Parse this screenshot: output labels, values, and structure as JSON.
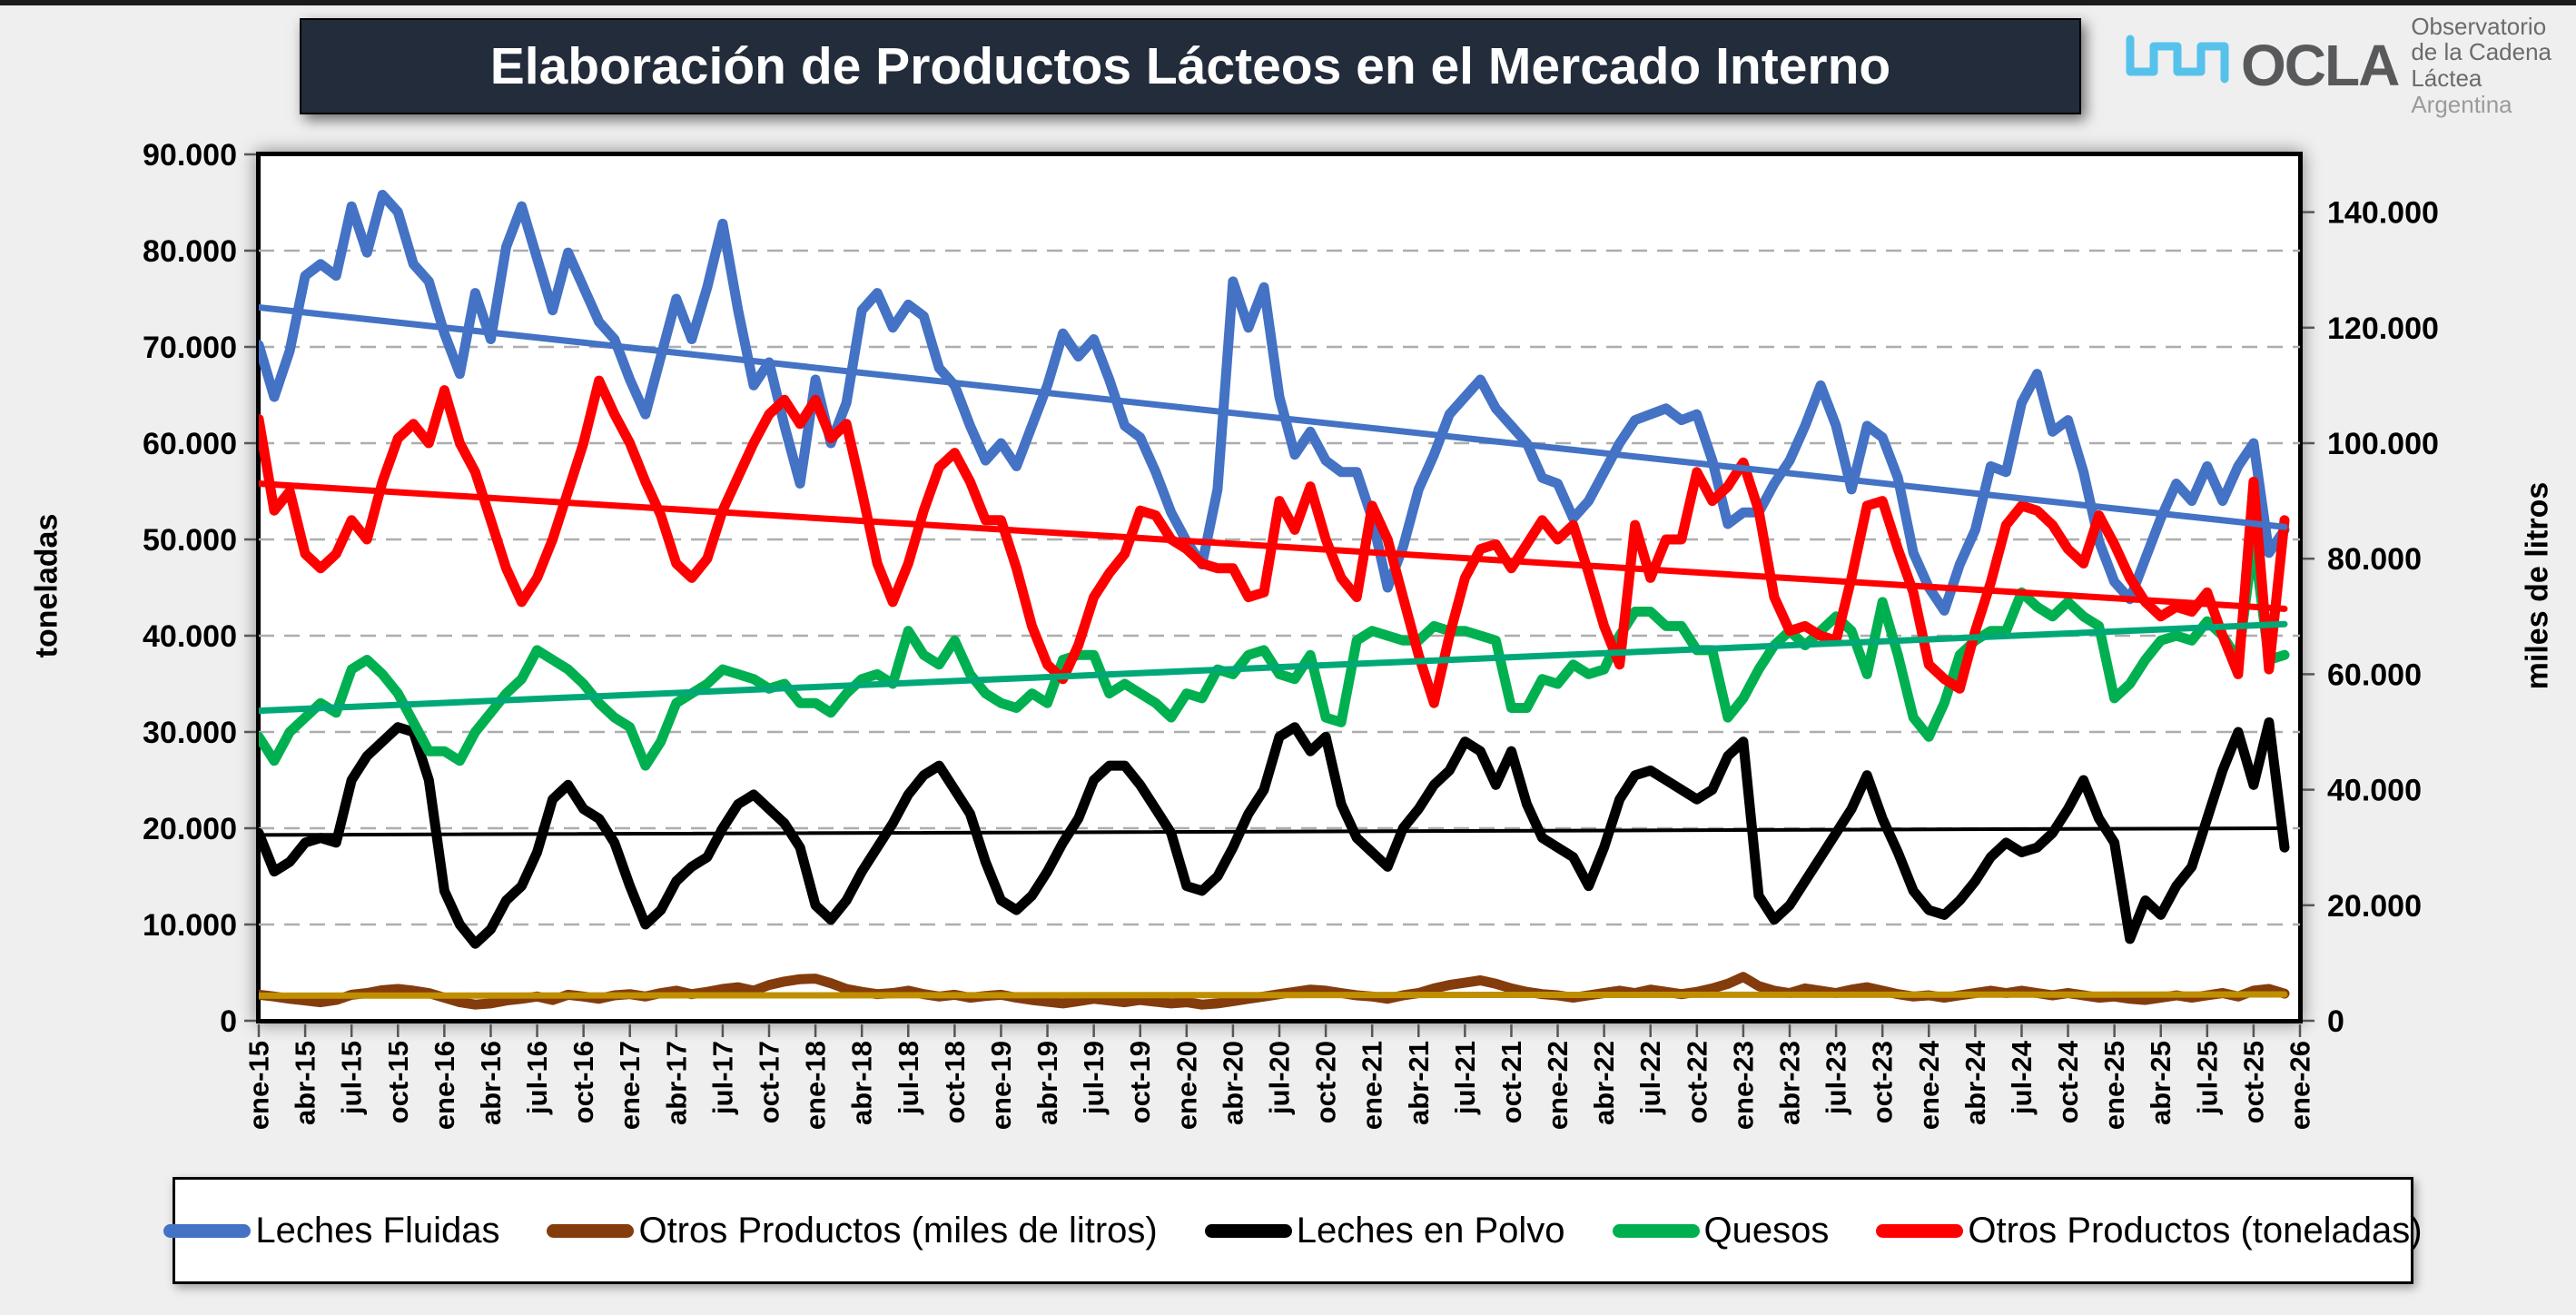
{
  "header": {
    "title": "Elaboración de Productos Lácteos en el Mercado Interno",
    "logo": {
      "name": "OCLA",
      "line1": "Observatorio",
      "line2": "de la Cadena Láctea",
      "line3": "Argentina",
      "wave_color": "#45bdeb"
    }
  },
  "chart_data": {
    "type": "line",
    "title": "Elaboración de Productos Lácteos en el Mercado Interno",
    "grid": {
      "horizontal_dashed": true,
      "color": "#adadad"
    },
    "x_axis": {
      "months_total": 132,
      "label_interval_months": 3,
      "labels": [
        "ene-15",
        "abr-15",
        "jul-15",
        "oct-15",
        "ene-16",
        "abr-16",
        "jul-16",
        "oct-16",
        "ene-17",
        "abr-17",
        "jul-17",
        "oct-17",
        "ene-18",
        "abr-18",
        "jul-18",
        "oct-18",
        "ene-19",
        "abr-19",
        "jul-19",
        "oct-19",
        "ene-20",
        "abr-20",
        "jul-20",
        "oct-20",
        "ene-21",
        "abr-21",
        "jul-21",
        "oct-21",
        "ene-22",
        "abr-22",
        "jul-22",
        "oct-22",
        "ene-23",
        "abr-23",
        "jul-23",
        "oct-23",
        "ene-24",
        "abr-24",
        "jul-24",
        "oct-24",
        "ene-25",
        "abr-25",
        "jul-25",
        "oct-25",
        "ene-26"
      ]
    },
    "y_axis_left": {
      "title": "toneladas",
      "min": 0,
      "max": 90000,
      "step": 10000,
      "tick_labels": [
        "90.000",
        "80.000",
        "70.000",
        "60.000",
        "50.000",
        "40.000",
        "30.000",
        "20.000",
        "10.000",
        "0"
      ]
    },
    "y_axis_right": {
      "title": "miles de litros",
      "min": 0,
      "max": 150000,
      "step": 20000,
      "tick_labels": [
        "0",
        "20.000",
        "40.000",
        "60.000",
        "80.000",
        "100.000",
        "120.000",
        "140.000"
      ]
    },
    "series": [
      {
        "name": "Leches Fluidas",
        "axis": "right",
        "unit": "miles de litros",
        "color": "#4472C4",
        "width": 11,
        "values": [
          117000,
          108000,
          116000,
          129000,
          131000,
          129000,
          141000,
          133000,
          143000,
          140000,
          131000,
          128000,
          119000,
          112000,
          126000,
          118000,
          134000,
          141000,
          132000,
          123000,
          133000,
          127000,
          121000,
          118000,
          111000,
          105000,
          115000,
          125000,
          118000,
          127000,
          138000,
          123000,
          110000,
          114000,
          103000,
          93000,
          111000,
          100000,
          107000,
          123000,
          126000,
          120000,
          124000,
          122000,
          113000,
          110000,
          103000,
          97000,
          100000,
          96000,
          103000,
          110000,
          119000,
          115000,
          118000,
          111000,
          103000,
          101000,
          95000,
          88000,
          83000,
          79000,
          92000,
          128000,
          120000,
          127000,
          108000,
          98000,
          102000,
          97000,
          95000,
          95000,
          87000,
          75000,
          82000,
          92000,
          98000,
          105000,
          108000,
          111000,
          106000,
          103000,
          100000,
          94000,
          93000,
          87000,
          90000,
          95000,
          100000,
          104000,
          105000,
          106000,
          104000,
          105000,
          97000,
          86000,
          88000,
          88000,
          93000,
          97000,
          103000,
          110000,
          103000,
          92000,
          103000,
          101000,
          94000,
          81000,
          75000,
          71000,
          79000,
          85000,
          96000,
          95000,
          107000,
          112000,
          102000,
          104000,
          95000,
          83000,
          76000,
          73000,
          80000,
          87000,
          93000,
          90000,
          96000,
          90000,
          96000,
          100000,
          81000,
          85000
        ]
      },
      {
        "name": "Otros Productos (miles de litros)",
        "axis": "right",
        "unit": "miles de litros",
        "color": "#843C0C",
        "width": 11,
        "values": [
          4500,
          4200,
          3800,
          3500,
          3200,
          3600,
          4500,
          4800,
          5300,
          5500,
          5200,
          4800,
          4000,
          3200,
          2800,
          3000,
          3500,
          3800,
          4200,
          3600,
          4500,
          4200,
          3800,
          4400,
          4600,
          4200,
          4800,
          5200,
          4600,
          5000,
          5500,
          5800,
          5200,
          6200,
          6800,
          7200,
          7300,
          6500,
          5500,
          5000,
          4600,
          4800,
          5200,
          4600,
          4200,
          4500,
          4000,
          4300,
          4500,
          4000,
          3600,
          3300,
          3000,
          3400,
          3800,
          3500,
          3200,
          3600,
          3300,
          3000,
          3200,
          2800,
          3000,
          3400,
          3800,
          4200,
          4600,
          5000,
          5400,
          5200,
          4800,
          4400,
          4200,
          3800,
          4400,
          4800,
          5600,
          6200,
          6600,
          7000,
          6400,
          5600,
          5000,
          4600,
          4400,
          4000,
          4400,
          4800,
          5200,
          4800,
          5400,
          5000,
          4600,
          5000,
          5600,
          6400,
          7600,
          6000,
          5200,
          4800,
          5600,
          5200,
          4800,
          5400,
          5800,
          5200,
          4600,
          4200,
          4400,
          4000,
          4400,
          4800,
          5200,
          4800,
          5200,
          4800,
          4400,
          4800,
          4400,
          4000,
          4200,
          3800,
          3600,
          4000,
          4400,
          4000,
          4400,
          4800,
          4200,
          5200,
          5500,
          4700
        ]
      },
      {
        "name": "Leches en Polvo",
        "axis": "left",
        "unit": "toneladas",
        "color": "#000000",
        "width": 11,
        "values": [
          19500,
          15500,
          16500,
          18500,
          19000,
          18500,
          25000,
          27500,
          29000,
          30500,
          30000,
          25000,
          13500,
          10000,
          8000,
          9500,
          12500,
          14000,
          17500,
          23000,
          24500,
          22000,
          21000,
          18500,
          14000,
          10000,
          11500,
          14500,
          16000,
          17000,
          20000,
          22500,
          23500,
          22000,
          20500,
          18000,
          12000,
          10500,
          12500,
          15500,
          18000,
          20500,
          23500,
          25500,
          26500,
          24000,
          21500,
          16500,
          12500,
          11500,
          13000,
          15500,
          18500,
          21000,
          25000,
          26500,
          26500,
          24500,
          22000,
          19500,
          14000,
          13500,
          15000,
          18000,
          21500,
          24000,
          29500,
          30500,
          28000,
          29500,
          22500,
          19000,
          17500,
          16000,
          20000,
          22000,
          24500,
          26000,
          29000,
          28000,
          24500,
          28000,
          22500,
          19000,
          18000,
          17000,
          14000,
          18000,
          23000,
          25500,
          26000,
          25000,
          24000,
          23000,
          24000,
          27500,
          29000,
          13000,
          10500,
          12000,
          14500,
          17000,
          19500,
          22000,
          25500,
          21000,
          17500,
          13500,
          11500,
          11000,
          12500,
          14500,
          17000,
          18500,
          17500,
          18000,
          19500,
          22000,
          25000,
          21000,
          18500,
          8500,
          12500,
          11000,
          14000,
          16000,
          21000,
          26000,
          30000,
          24500,
          31000,
          18000
        ]
      },
      {
        "name": "Quesos",
        "axis": "left",
        "unit": "toneladas",
        "color": "#00B050",
        "width": 11,
        "values": [
          29500,
          27000,
          30000,
          31500,
          33000,
          32000,
          36500,
          37500,
          36000,
          34000,
          31000,
          28000,
          28000,
          27000,
          30000,
          32000,
          34000,
          35500,
          38500,
          37500,
          36500,
          35000,
          33000,
          31500,
          30500,
          26500,
          29000,
          33000,
          34000,
          35000,
          36500,
          36000,
          35500,
          34500,
          35000,
          33000,
          33000,
          32000,
          34000,
          35500,
          36000,
          35000,
          40500,
          38000,
          37000,
          39500,
          36000,
          34000,
          33000,
          32500,
          34000,
          33000,
          37500,
          38000,
          38000,
          34000,
          35000,
          34000,
          33000,
          31500,
          34000,
          33500,
          36500,
          36000,
          38000,
          38500,
          36000,
          35500,
          38000,
          31500,
          31000,
          39500,
          40500,
          40000,
          39500,
          39500,
          41000,
          40500,
          40500,
          40000,
          39500,
          32500,
          32500,
          35500,
          35000,
          37000,
          36000,
          36500,
          40000,
          42500,
          42500,
          41000,
          41000,
          38500,
          38500,
          31500,
          33500,
          36500,
          39000,
          40500,
          39000,
          40500,
          42000,
          40500,
          36000,
          43500,
          38000,
          31500,
          29500,
          33000,
          38000,
          39500,
          40500,
          40500,
          44500,
          43000,
          42000,
          43500,
          42000,
          41000,
          33500,
          35000,
          37500,
          39500,
          40000,
          39500,
          41500,
          40000,
          37500,
          50000,
          37500,
          38000
        ]
      },
      {
        "name": "Otros Productos (toneladas)",
        "axis": "left",
        "unit": "toneladas",
        "color": "#FF0000",
        "width": 11,
        "values": [
          62500,
          53000,
          55000,
          48500,
          47000,
          48500,
          52000,
          50000,
          56000,
          60500,
          62000,
          60000,
          65500,
          60000,
          57000,
          52000,
          47000,
          43500,
          46000,
          50000,
          55000,
          60000,
          66500,
          63000,
          60000,
          56000,
          52500,
          47500,
          46000,
          48000,
          53000,
          56500,
          60000,
          63000,
          64500,
          62000,
          64500,
          60500,
          62000,
          55000,
          47500,
          43500,
          47500,
          53000,
          57500,
          59000,
          56000,
          52000,
          52000,
          47000,
          41000,
          37000,
          35500,
          39000,
          44000,
          46500,
          48500,
          53000,
          52500,
          50000,
          49000,
          47500,
          47000,
          47000,
          44000,
          44500,
          54000,
          51000,
          55500,
          50000,
          46000,
          44000,
          53500,
          50000,
          44000,
          38000,
          33000,
          40000,
          46000,
          49000,
          49500,
          47000,
          49500,
          52000,
          50000,
          51500,
          46500,
          41000,
          37000,
          51500,
          46000,
          50000,
          50000,
          57000,
          54000,
          55500,
          58000,
          53000,
          44000,
          40500,
          41000,
          40000,
          39500,
          46000,
          53500,
          54000,
          49000,
          44500,
          37000,
          35500,
          34500,
          40500,
          45500,
          51500,
          53500,
          53000,
          51500,
          49000,
          47500,
          52500,
          49500,
          46000,
          43500,
          42000,
          43000,
          42500,
          44500,
          40000,
          36000,
          56000,
          36500,
          52000
        ]
      }
    ],
    "trendlines": [
      {
        "series": "Leches Fluidas",
        "axis": "right",
        "color": "#4472C4",
        "start": 123500,
        "end": 85500,
        "width": 7
      },
      {
        "series": "Otros Productos (miles de litros)",
        "axis": "right",
        "color": "#BF8F00",
        "start": 4350,
        "end": 4550,
        "width": 7
      },
      {
        "series": "Leches en Polvo",
        "axis": "left",
        "color": "#000000",
        "start": 19300,
        "end": 20000,
        "width": 4
      },
      {
        "series": "Quesos",
        "axis": "left",
        "color": "#00A878",
        "start": 32200,
        "end": 41200,
        "width": 7
      },
      {
        "series": "Otros Productos (toneladas)",
        "axis": "left",
        "color": "#FF0000",
        "start": 55800,
        "end": 42800,
        "width": 7
      }
    ]
  },
  "legend": {
    "items": [
      {
        "label": "Leches Fluidas",
        "color": "#4472C4"
      },
      {
        "label": "Otros Productos (miles de litros)",
        "color": "#843C0C"
      },
      {
        "label": "Leches en Polvo",
        "color": "#000000"
      },
      {
        "label": "Quesos",
        "color": "#00B050"
      },
      {
        "label": "Otros Productos (toneladas)",
        "color": "#FF0000"
      }
    ]
  }
}
